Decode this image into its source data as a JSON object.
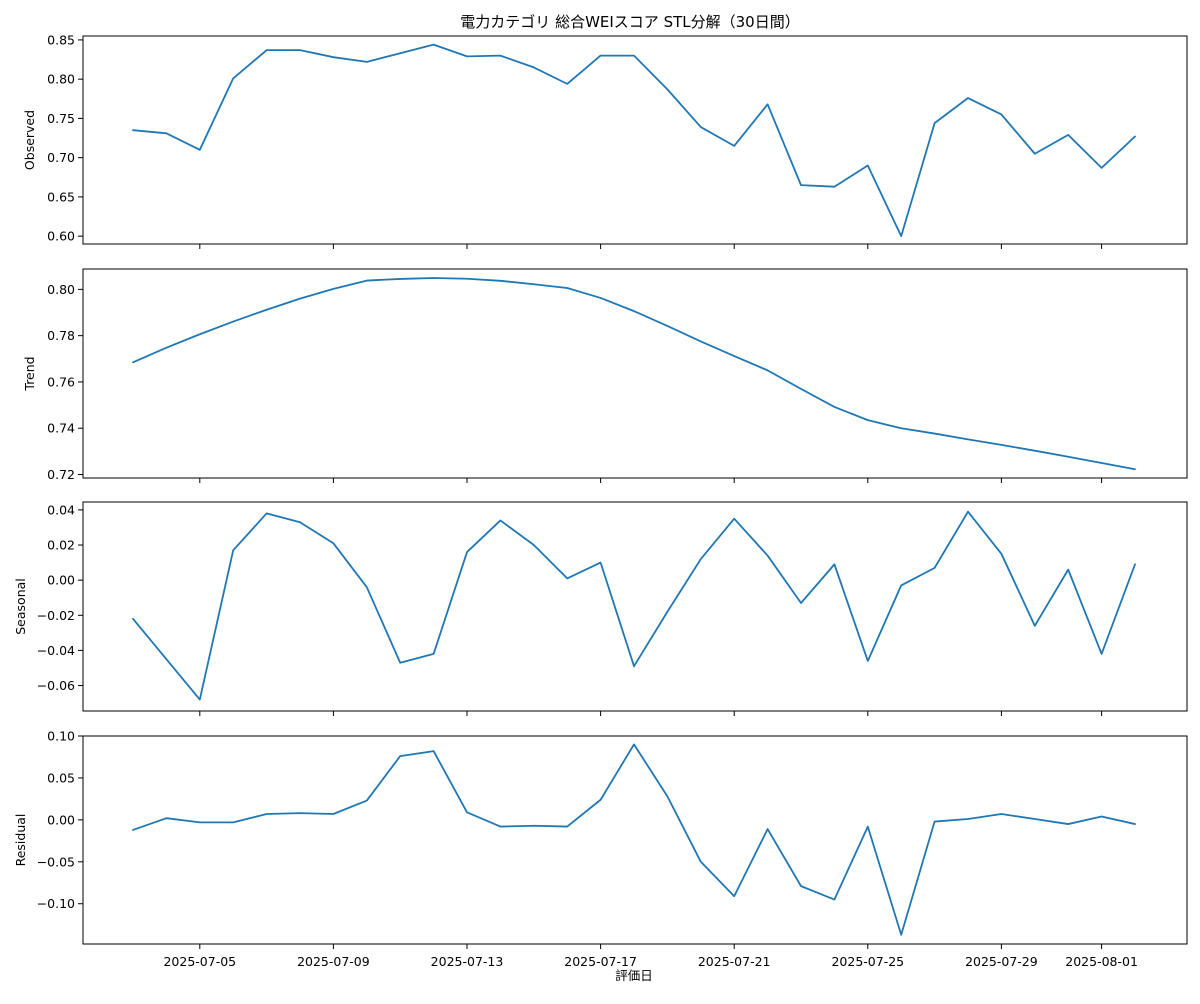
{
  "chart_data": {
    "type": "line",
    "title": "電力カテゴリ 総合WEIスコア STL分解（30日間）",
    "xlabel": "評価日",
    "x": [
      "2025-07-03",
      "2025-07-04",
      "2025-07-05",
      "2025-07-06",
      "2025-07-07",
      "2025-07-08",
      "2025-07-09",
      "2025-07-10",
      "2025-07-11",
      "2025-07-12",
      "2025-07-13",
      "2025-07-14",
      "2025-07-15",
      "2025-07-16",
      "2025-07-17",
      "2025-07-18",
      "2025-07-19",
      "2025-07-20",
      "2025-07-21",
      "2025-07-22",
      "2025-07-23",
      "2025-07-24",
      "2025-07-25",
      "2025-07-26",
      "2025-07-27",
      "2025-07-28",
      "2025-07-29",
      "2025-07-30",
      "2025-07-31",
      "2025-08-01",
      "2025-08-02"
    ],
    "x_ticks": [
      "2025-07-05",
      "2025-07-09",
      "2025-07-13",
      "2025-07-17",
      "2025-07-21",
      "2025-07-25",
      "2025-07-29",
      "2025-08-01"
    ],
    "line_color": "#1f77b4",
    "grid": false,
    "panels": [
      {
        "ylabel": "Observed",
        "ylim": [
          0.59,
          0.855
        ],
        "yticks": [
          "0.60",
          "0.65",
          "0.70",
          "0.75",
          "0.80",
          "0.85"
        ],
        "values": [
          0.735,
          0.731,
          0.71,
          0.801,
          0.837,
          0.837,
          0.828,
          0.822,
          0.833,
          0.844,
          0.829,
          0.83,
          0.815,
          0.794,
          0.83,
          0.83,
          0.787,
          0.739,
          0.715,
          0.768,
          0.665,
          0.663,
          0.69,
          0.6,
          0.744,
          0.776,
          0.755,
          0.705,
          0.729,
          0.687,
          0.727
        ]
      },
      {
        "ylabel": "Trend",
        "ylim": [
          0.7185,
          0.8088
        ],
        "yticks": [
          "0.72",
          "0.74",
          "0.76",
          "0.78",
          "0.80"
        ],
        "values": [
          0.7685,
          0.7748,
          0.7806,
          0.7861,
          0.7912,
          0.796,
          0.8002,
          0.8038,
          0.8045,
          0.8049,
          0.8046,
          0.8037,
          0.8022,
          0.8006,
          0.7963,
          0.7906,
          0.7842,
          0.7775,
          0.7712,
          0.765,
          0.757,
          0.7492,
          0.7435,
          0.74,
          0.7377,
          0.7352,
          0.7328,
          0.7303,
          0.7277,
          0.725,
          0.7223
        ]
      },
      {
        "ylabel": "Seasonal",
        "ylim": [
          -0.0745,
          0.0445
        ],
        "yticks": [
          "−0.06",
          "−0.04",
          "−0.02",
          "0.00",
          "0.02",
          "0.04"
        ],
        "values": [
          -0.022,
          -0.045,
          -0.068,
          0.017,
          0.038,
          0.033,
          0.021,
          -0.004,
          -0.047,
          -0.042,
          0.016,
          0.034,
          0.02,
          0.001,
          0.01,
          -0.049,
          -0.018,
          0.012,
          0.035,
          0.014,
          -0.013,
          0.009,
          -0.046,
          -0.003,
          0.007,
          0.039,
          0.015,
          -0.026,
          0.006,
          -0.042,
          0.009
        ]
      },
      {
        "ylabel": "Residual",
        "ylim": [
          -0.148,
          0.1
        ],
        "yticks": [
          "−0.10",
          "−0.05",
          "0.00",
          "0.05",
          "0.10"
        ],
        "values": [
          -0.012,
          0.002,
          -0.003,
          -0.003,
          0.007,
          0.008,
          0.007,
          0.023,
          0.076,
          0.082,
          0.009,
          -0.008,
          -0.007,
          -0.008,
          0.024,
          0.09,
          0.028,
          -0.05,
          -0.091,
          -0.011,
          -0.079,
          -0.095,
          -0.008,
          -0.137,
          -0.002,
          0.001,
          0.007,
          0.001,
          -0.005,
          0.004,
          -0.005
        ]
      }
    ]
  }
}
